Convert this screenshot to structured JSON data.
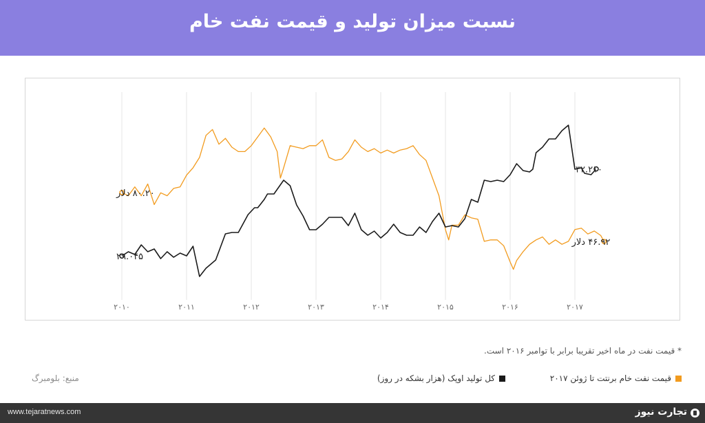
{
  "header": {
    "title": "نسبت میزان تولید و قیمت نفت خام"
  },
  "footnote": "* قیمت نفت در ماه اخیر تقریبا برابر با توامبر ۲۰۱۶ است.",
  "legend": [
    {
      "label": "قیمت نفت خام برنتت تا ژوئن ۲۰۱۷",
      "color": "#f29b1e"
    },
    {
      "label": "کل تولید اوپک (هزار بشکه در روز)",
      "color": "#1a1a1a"
    }
  ],
  "source": "منبع: بلومبرگ",
  "footer": {
    "url": "www.tejaratnews.com",
    "brand": "تجارت نیوز"
  },
  "colors": {
    "header_bg": "#8a7fe0",
    "orange": "#f29b1e",
    "black": "#1a1a1a",
    "footer_bg": "#353535"
  },
  "chart_data": {
    "type": "line",
    "x_ticks": [
      "۲۰۱۰",
      "۲۰۱۱",
      "۲۰۱۲",
      "۲۰۱۳",
      "۲۰۱۴",
      "۲۰۱۵",
      "۲۰۱۶",
      "۲۰۱۷"
    ],
    "x_tick_values": [
      2010,
      2011,
      2012,
      2013,
      2014,
      2015,
      2016,
      2017
    ],
    "xlim": [
      2010,
      2017.75
    ],
    "grid": "vertical",
    "annotations": {
      "brent_start": "۸۰.۲۰ دلار",
      "brent_end": "۴۶.۹۲ دلار",
      "opec_start": "۲۹.۰۴۵",
      "opec_end": "۳۲.۲۱۰"
    },
    "series": [
      {
        "key": "brent",
        "color": "#f29b1e",
        "points": [
          [
            2010.0,
            80.2
          ],
          [
            2010.1,
            78
          ],
          [
            2010.2,
            84
          ],
          [
            2010.3,
            78
          ],
          [
            2010.4,
            86
          ],
          [
            2010.5,
            72
          ],
          [
            2010.6,
            80
          ],
          [
            2010.7,
            78
          ],
          [
            2010.8,
            83
          ],
          [
            2010.9,
            84
          ],
          [
            2011.0,
            92
          ],
          [
            2011.1,
            97
          ],
          [
            2011.2,
            104
          ],
          [
            2011.3,
            119
          ],
          [
            2011.4,
            123
          ],
          [
            2011.5,
            113
          ],
          [
            2011.6,
            117
          ],
          [
            2011.7,
            111
          ],
          [
            2011.8,
            108
          ],
          [
            2011.9,
            108
          ],
          [
            2012.0,
            112
          ],
          [
            2012.1,
            118
          ],
          [
            2012.2,
            124
          ],
          [
            2012.3,
            118
          ],
          [
            2012.4,
            108
          ],
          [
            2012.45,
            90
          ],
          [
            2012.5,
            97
          ],
          [
            2012.6,
            112
          ],
          [
            2012.7,
            111
          ],
          [
            2012.8,
            110
          ],
          [
            2012.9,
            112
          ],
          [
            2013.0,
            112
          ],
          [
            2013.1,
            116
          ],
          [
            2013.2,
            104
          ],
          [
            2013.3,
            102
          ],
          [
            2013.4,
            103
          ],
          [
            2013.5,
            108
          ],
          [
            2013.6,
            116
          ],
          [
            2013.7,
            111
          ],
          [
            2013.8,
            108
          ],
          [
            2013.9,
            110
          ],
          [
            2014.0,
            107
          ],
          [
            2014.1,
            109
          ],
          [
            2014.2,
            107
          ],
          [
            2014.3,
            109
          ],
          [
            2014.4,
            110
          ],
          [
            2014.5,
            112
          ],
          [
            2014.6,
            106
          ],
          [
            2014.7,
            102
          ],
          [
            2014.8,
            90
          ],
          [
            2014.9,
            78
          ],
          [
            2015.0,
            55
          ],
          [
            2015.05,
            48
          ],
          [
            2015.1,
            58
          ],
          [
            2015.2,
            58
          ],
          [
            2015.3,
            65
          ],
          [
            2015.4,
            63
          ],
          [
            2015.5,
            62
          ],
          [
            2015.6,
            47
          ],
          [
            2015.7,
            48
          ],
          [
            2015.8,
            48
          ],
          [
            2015.9,
            44
          ],
          [
            2016.0,
            33
          ],
          [
            2016.05,
            28
          ],
          [
            2016.1,
            34
          ],
          [
            2016.2,
            40
          ],
          [
            2016.3,
            45
          ],
          [
            2016.4,
            48
          ],
          [
            2016.5,
            50
          ],
          [
            2016.6,
            45
          ],
          [
            2016.7,
            48
          ],
          [
            2016.8,
            45
          ],
          [
            2016.9,
            47
          ],
          [
            2017.0,
            55
          ],
          [
            2017.1,
            56
          ],
          [
            2017.2,
            52
          ],
          [
            2017.3,
            54
          ],
          [
            2017.4,
            51
          ],
          [
            2017.45,
            46.92
          ]
        ]
      },
      {
        "key": "opec",
        "color": "#1a1a1a",
        "points": [
          [
            2010.0,
            29.045
          ],
          [
            2010.1,
            29.2
          ],
          [
            2010.2,
            29.1
          ],
          [
            2010.3,
            29.45
          ],
          [
            2010.4,
            29.2
          ],
          [
            2010.5,
            29.3
          ],
          [
            2010.6,
            28.95
          ],
          [
            2010.7,
            29.2
          ],
          [
            2010.8,
            29.0
          ],
          [
            2010.9,
            29.15
          ],
          [
            2011.0,
            29.05
          ],
          [
            2011.1,
            29.4
          ],
          [
            2011.2,
            28.3
          ],
          [
            2011.3,
            28.6
          ],
          [
            2011.45,
            28.9
          ],
          [
            2011.6,
            29.85
          ],
          [
            2011.7,
            29.9
          ],
          [
            2011.8,
            29.9
          ],
          [
            2011.95,
            30.55
          ],
          [
            2012.05,
            30.8
          ],
          [
            2012.1,
            30.8
          ],
          [
            2012.2,
            31.1
          ],
          [
            2012.25,
            31.3
          ],
          [
            2012.35,
            31.3
          ],
          [
            2012.5,
            31.8
          ],
          [
            2012.6,
            31.6
          ],
          [
            2012.7,
            30.9
          ],
          [
            2012.8,
            30.5
          ],
          [
            2012.9,
            30.0
          ],
          [
            2013.0,
            30.0
          ],
          [
            2013.1,
            30.2
          ],
          [
            2013.2,
            30.45
          ],
          [
            2013.3,
            30.45
          ],
          [
            2013.4,
            30.45
          ],
          [
            2013.5,
            30.15
          ],
          [
            2013.6,
            30.6
          ],
          [
            2013.7,
            30.0
          ],
          [
            2013.8,
            29.8
          ],
          [
            2013.9,
            29.95
          ],
          [
            2014.0,
            29.7
          ],
          [
            2014.1,
            29.9
          ],
          [
            2014.2,
            30.2
          ],
          [
            2014.3,
            29.9
          ],
          [
            2014.4,
            29.8
          ],
          [
            2014.5,
            29.8
          ],
          [
            2014.6,
            30.1
          ],
          [
            2014.7,
            29.9
          ],
          [
            2014.8,
            30.3
          ],
          [
            2014.9,
            30.6
          ],
          [
            2015.0,
            30.1
          ],
          [
            2015.1,
            30.15
          ],
          [
            2015.2,
            30.1
          ],
          [
            2015.3,
            30.4
          ],
          [
            2015.4,
            31.1
          ],
          [
            2015.5,
            31.0
          ],
          [
            2015.6,
            31.8
          ],
          [
            2015.7,
            31.75
          ],
          [
            2015.8,
            31.8
          ],
          [
            2015.9,
            31.75
          ],
          [
            2016.0,
            32.0
          ],
          [
            2016.1,
            32.4
          ],
          [
            2016.2,
            32.15
          ],
          [
            2016.3,
            32.1
          ],
          [
            2016.35,
            32.2
          ],
          [
            2016.4,
            32.8
          ],
          [
            2016.5,
            33.0
          ],
          [
            2016.6,
            33.3
          ],
          [
            2016.7,
            33.3
          ],
          [
            2016.8,
            33.6
          ],
          [
            2016.9,
            33.8
          ],
          [
            2017.0,
            32.2
          ],
          [
            2017.1,
            32.25
          ],
          [
            2017.15,
            32.05
          ],
          [
            2017.25,
            32.0
          ],
          [
            2017.33,
            32.21
          ]
        ]
      }
    ]
  }
}
